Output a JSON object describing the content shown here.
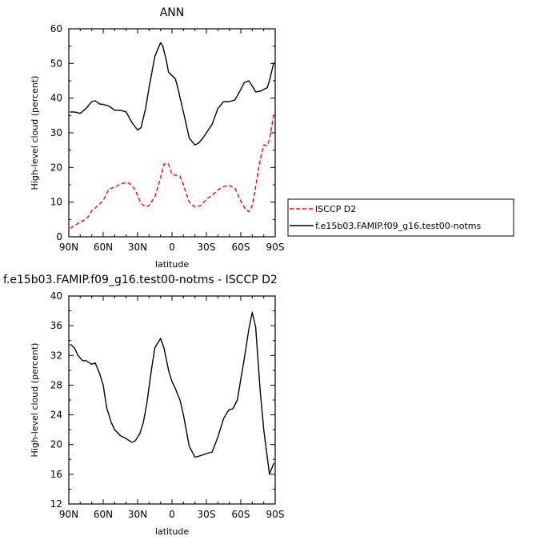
{
  "chart_data": [
    {
      "type": "line",
      "title": "ANN",
      "xlabel": "latitude",
      "ylabel": "High-level cloud (percent)",
      "xlim": [
        90,
        -90
      ],
      "ylim": [
        0,
        60
      ],
      "x_ticks": [
        90,
        60,
        30,
        0,
        -30,
        -60,
        -90
      ],
      "x_tick_labels": [
        "90N",
        "60N",
        "30N",
        "0",
        "30S",
        "60S",
        "90S"
      ],
      "y_ticks": [
        0,
        10,
        20,
        30,
        40,
        50,
        60
      ],
      "y_tick_labels": [
        "0",
        "10",
        "20",
        "30",
        "40",
        "50",
        "60"
      ],
      "legend_position": "right",
      "series": [
        {
          "name": "ISCCP D2",
          "color": "#ff0000",
          "dash": "dashed",
          "x": [
            88.8,
            85,
            80,
            77,
            73,
            70,
            67,
            63,
            60,
            55,
            50,
            45,
            40,
            37,
            33,
            30,
            27,
            23,
            20,
            15,
            10,
            7,
            3,
            0,
            -3,
            -7,
            -10,
            -15,
            -20,
            -25,
            -30,
            -35,
            -40,
            -45,
            -50,
            -55,
            -60,
            -63,
            -67,
            -70,
            -73,
            -77,
            -80,
            -83,
            -85,
            -88.8
          ],
          "y": [
            2.5,
            3.2,
            4.3,
            4.7,
            5.8,
            7.5,
            8.3,
            9.5,
            10.5,
            13.8,
            14.3,
            15.2,
            15.7,
            15.4,
            14.0,
            11.9,
            9.6,
            8.7,
            9.0,
            11.5,
            17.0,
            21.0,
            21.0,
            18.0,
            17.8,
            17.5,
            15.0,
            10.0,
            8.6,
            9.0,
            10.8,
            12.0,
            13.5,
            14.5,
            14.8,
            14.0,
            10.3,
            8.5,
            7.2,
            9.0,
            14.5,
            22.5,
            26.5,
            26.3,
            28.0,
            35.5
          ]
        },
        {
          "name": "f.e15b03.FAMIP.f09_g16.test00-notms",
          "color": "#000000",
          "dash": "solid",
          "x": [
            88.8,
            85,
            80,
            75,
            70,
            67,
            63,
            60,
            55,
            50,
            45,
            40,
            35,
            30,
            27,
            23,
            20,
            15,
            10,
            8,
            5,
            3,
            0,
            -3,
            -5,
            -10,
            -15,
            -20,
            -23,
            -27,
            -30,
            -35,
            -40,
            -45,
            -50,
            -55,
            -60,
            -63,
            -67,
            -70,
            -73,
            -77,
            -80,
            -83,
            -85,
            -88.8
          ],
          "y": [
            36.0,
            36.0,
            35.6,
            37.0,
            39.0,
            39.2,
            38.3,
            38.2,
            37.7,
            36.5,
            36.5,
            36.0,
            33.0,
            30.8,
            31.5,
            37.0,
            43.0,
            52.0,
            56.0,
            55.0,
            51.0,
            47.5,
            46.5,
            45.5,
            43.0,
            36.0,
            28.5,
            26.5,
            27.0,
            28.5,
            30.0,
            32.5,
            37.0,
            39.0,
            39.0,
            39.5,
            42.5,
            44.5,
            45.0,
            43.5,
            41.8,
            42.0,
            42.5,
            43.0,
            45.0,
            50.3
          ]
        }
      ]
    },
    {
      "type": "line",
      "title": "f.e15b03.FAMIP.f09_g16.test00-notms - ISCCP D2",
      "xlabel": "latitude",
      "ylabel": "High-level cloud (percent)",
      "xlim": [
        90,
        -90
      ],
      "ylim": [
        12,
        40
      ],
      "x_ticks": [
        90,
        60,
        30,
        0,
        -30,
        -60,
        -90
      ],
      "x_tick_labels": [
        "90N",
        "60N",
        "30N",
        "0",
        "30S",
        "60S",
        "90S"
      ],
      "y_ticks": [
        12,
        16,
        20,
        24,
        28,
        32,
        36,
        40
      ],
      "y_tick_labels": [
        "12",
        "16",
        "20",
        "24",
        "28",
        "32",
        "36",
        "40"
      ],
      "series": [
        {
          "color": "#000000",
          "dash": "solid",
          "x": [
            88.8,
            85,
            82,
            78,
            75,
            72,
            70,
            67,
            63,
            60,
            57,
            53,
            50,
            45,
            40,
            35,
            32,
            28,
            25,
            22,
            18,
            15,
            10,
            7,
            3,
            0,
            -3,
            -7,
            -10,
            -15,
            -20,
            -25,
            -30,
            -35,
            -40,
            -45,
            -48,
            -50,
            -53,
            -57,
            -60,
            -63,
            -67,
            -70,
            -73,
            -77,
            -80,
            -85,
            -88.8
          ],
          "y": [
            33.5,
            33.0,
            32.0,
            31.3,
            31.3,
            31.0,
            30.8,
            31.0,
            29.5,
            28.0,
            25.0,
            23.0,
            22.0,
            21.2,
            20.8,
            20.3,
            20.5,
            21.5,
            23.0,
            25.5,
            30.0,
            33.0,
            34.3,
            33.0,
            30.0,
            28.5,
            27.5,
            26.0,
            24.0,
            19.8,
            18.3,
            18.5,
            18.8,
            19.0,
            21.0,
            23.5,
            24.3,
            24.7,
            24.8,
            26.0,
            28.8,
            31.5,
            35.5,
            37.8,
            35.8,
            27.0,
            22.0,
            16.0,
            17.5
          ]
        }
      ]
    }
  ]
}
